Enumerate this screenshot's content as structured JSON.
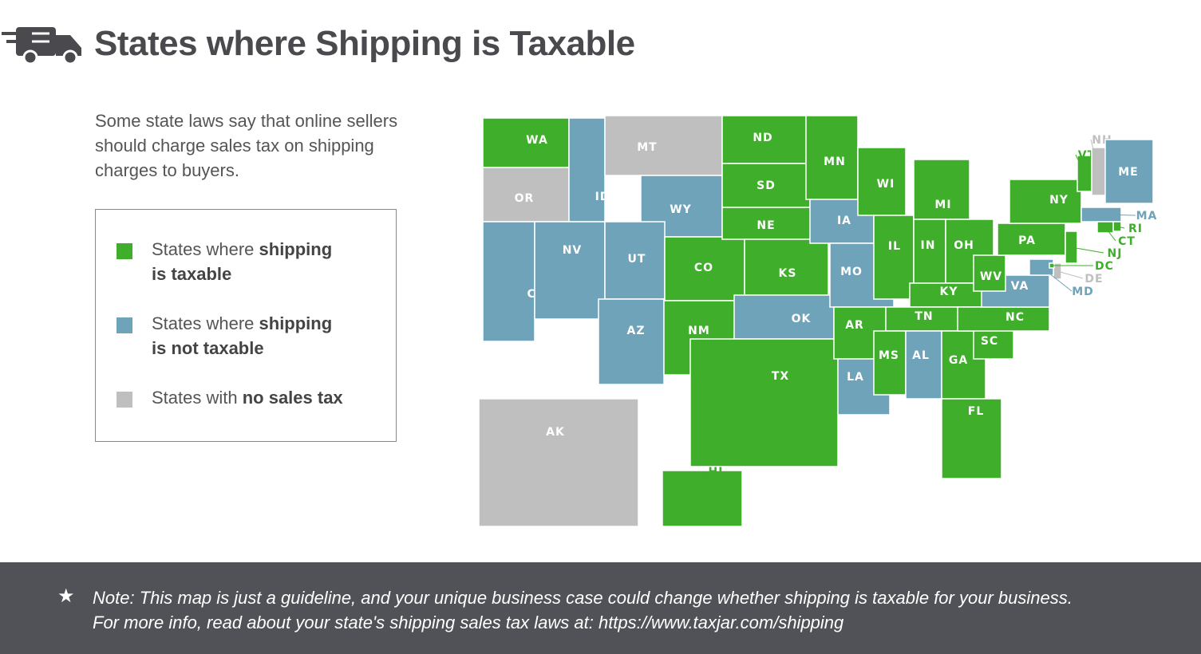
{
  "header": {
    "title": "States where Shipping is Taxable"
  },
  "intro": "Some state laws say that online sellers should charge sales tax on shipping charges to buyers.",
  "legend": [
    {
      "status": "taxable",
      "color": "#3fae2a",
      "parts": [
        "States where ",
        "shipping",
        "is taxable"
      ]
    },
    {
      "status": "not_taxable",
      "color": "#6fa3ba",
      "parts": [
        "States where ",
        "shipping",
        "is not taxable"
      ]
    },
    {
      "status": "no_sales_tax",
      "color": "#bfbfbf",
      "parts": [
        "States with ",
        "no sales tax"
      ]
    }
  ],
  "states": [
    {
      "label": "WA",
      "status": "taxable"
    },
    {
      "label": "OR",
      "status": "no_sales_tax"
    },
    {
      "label": "CA",
      "status": "not_taxable"
    },
    {
      "label": "ID",
      "status": "not_taxable"
    },
    {
      "label": "MT",
      "status": "no_sales_tax"
    },
    {
      "label": "WY",
      "status": "not_taxable"
    },
    {
      "label": "NV",
      "status": "not_taxable"
    },
    {
      "label": "UT",
      "status": "not_taxable"
    },
    {
      "label": "AZ",
      "status": "not_taxable"
    },
    {
      "label": "CO",
      "status": "taxable"
    },
    {
      "label": "NM",
      "status": "taxable"
    },
    {
      "label": "ND",
      "status": "taxable"
    },
    {
      "label": "SD",
      "status": "taxable"
    },
    {
      "label": "NE",
      "status": "taxable"
    },
    {
      "label": "KS",
      "status": "taxable"
    },
    {
      "label": "OK",
      "status": "not_taxable"
    },
    {
      "label": "TX",
      "status": "taxable"
    },
    {
      "label": "MN",
      "status": "taxable"
    },
    {
      "label": "IA",
      "status": "not_taxable"
    },
    {
      "label": "MO",
      "status": "not_taxable"
    },
    {
      "label": "AR",
      "status": "taxable"
    },
    {
      "label": "LA",
      "status": "not_taxable"
    },
    {
      "label": "WI",
      "status": "taxable"
    },
    {
      "label": "IL",
      "status": "taxable"
    },
    {
      "label": "MI",
      "status": "taxable"
    },
    {
      "label": "IN",
      "status": "taxable"
    },
    {
      "label": "OH",
      "status": "taxable"
    },
    {
      "label": "KY",
      "status": "taxable"
    },
    {
      "label": "TN",
      "status": "taxable"
    },
    {
      "label": "MS",
      "status": "taxable"
    },
    {
      "label": "AL",
      "status": "not_taxable"
    },
    {
      "label": "GA",
      "status": "taxable"
    },
    {
      "label": "FL",
      "status": "taxable"
    },
    {
      "label": "SC",
      "status": "taxable"
    },
    {
      "label": "NC",
      "status": "taxable"
    },
    {
      "label": "VA",
      "status": "not_taxable"
    },
    {
      "label": "WV",
      "status": "taxable"
    },
    {
      "label": "PA",
      "status": "taxable"
    },
    {
      "label": "NY",
      "status": "taxable"
    },
    {
      "label": "VT",
      "status": "taxable"
    },
    {
      "label": "NH",
      "status": "no_sales_tax"
    },
    {
      "label": "ME",
      "status": "not_taxable"
    },
    {
      "label": "MA",
      "status": "not_taxable"
    },
    {
      "label": "RI",
      "status": "taxable"
    },
    {
      "label": "CT",
      "status": "taxable"
    },
    {
      "label": "NJ",
      "status": "taxable"
    },
    {
      "label": "DE",
      "status": "no_sales_tax"
    },
    {
      "label": "MD",
      "status": "not_taxable"
    },
    {
      "label": "DC",
      "status": "taxable"
    },
    {
      "label": "AK",
      "status": "no_sales_tax"
    },
    {
      "label": "HI",
      "status": "taxable"
    }
  ],
  "note": "Note: This map is just a guideline, and your unique business case could change whether shipping is taxable for your business. For more info, read about your state's shipping sales tax laws at: https://www.taxjar.com/shipping"
}
